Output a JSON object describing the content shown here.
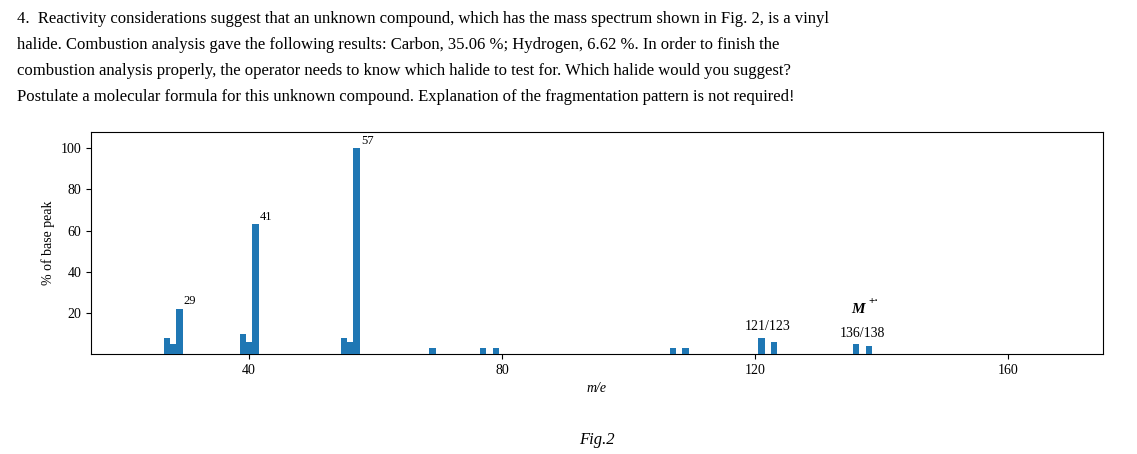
{
  "chart_data": {
    "type": "bar",
    "question_text": [
      "4.  Reactivity considerations suggest that an unknown compound, which has the mass spectrum shown in Fig. 2, is a vinyl",
      "halide. Combustion analysis gave the following results: Carbon, 35.06 %; Hydrogen, 6.62 %. In order to finish the",
      "combustion analysis properly, the operator needs to know which halide to test for. Which halide would you suggest?",
      "Postulate a molecular formula for this unknown compound. Explanation of the fragmentation pattern is not required!"
    ],
    "caption": "Fig.2",
    "x_label": "m/e",
    "y_label": "% of base peak",
    "x": [
      29,
      41,
      57,
      121,
      123,
      136,
      138,
      27,
      28,
      39,
      40,
      55,
      56,
      69,
      77,
      79,
      107,
      109
    ],
    "values": [
      22,
      63,
      100,
      8,
      6,
      5,
      4,
      8,
      5,
      10,
      6,
      8,
      6,
      3,
      3,
      3,
      3,
      3
    ],
    "xlim": [
      15,
      175
    ],
    "ylim": [
      0,
      108
    ],
    "xticks": [
      40,
      80,
      120,
      160
    ],
    "yticks": [
      20,
      40,
      60,
      80,
      100
    ],
    "annotations": [
      {
        "text": "29",
        "x": [
          29
        ]
      },
      {
        "text": "41",
        "x": [
          41
        ]
      },
      {
        "text": "57",
        "x": [
          57
        ]
      },
      {
        "text": "121/123",
        "x": [
          121,
          123
        ]
      },
      {
        "text": "136/138",
        "x": [
          136,
          138
        ]
      },
      {
        "text": "M",
        "superscript": "+·",
        "x": [
          136,
          138
        ]
      }
    ]
  }
}
